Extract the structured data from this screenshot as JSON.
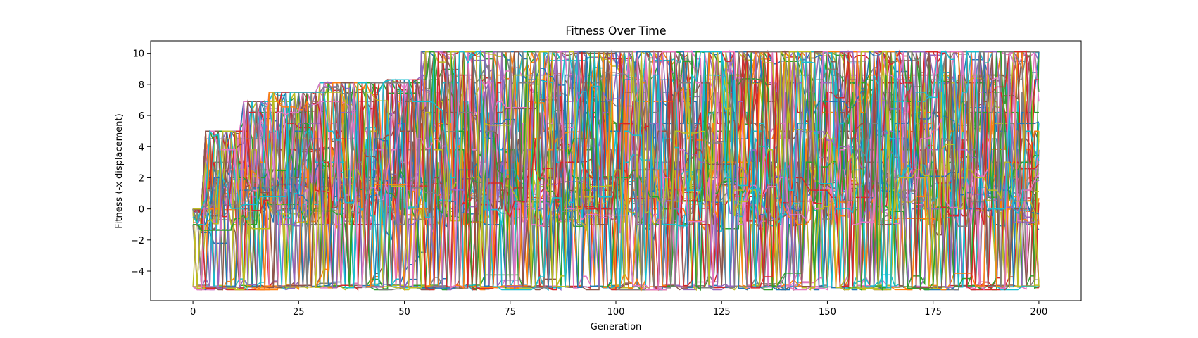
{
  "chart_data": {
    "type": "line",
    "title": "Fitness Over Time",
    "xlabel": "Generation",
    "ylabel": "Fitness (-x displacement)",
    "xlim": [
      -10,
      210
    ],
    "ylim": [
      -5.9,
      10.8
    ],
    "xticks": [
      0,
      25,
      50,
      75,
      100,
      125,
      150,
      175,
      200
    ],
    "yticks": [
      -4,
      -2,
      0,
      2,
      4,
      6,
      8,
      10
    ],
    "grid": false,
    "legend": "none",
    "palette": [
      "#1f77b4",
      "#ff7f0e",
      "#2ca02c",
      "#d62728",
      "#9467bd",
      "#8c564b",
      "#e377c2",
      "#7f7f7f",
      "#bcbd22",
      "#17becf"
    ],
    "series_count": 60,
    "generations": 201,
    "fitness_levels": [
      -5.0,
      -1.0,
      0.0,
      0.5,
      1.2,
      2.0,
      2.5,
      3.0,
      3.8,
      4.5,
      5.0,
      5.5,
      6.2,
      6.9,
      7.5,
      8.1,
      8.3,
      8.6,
      10.1
    ],
    "best_fitness_steps": [
      {
        "x": 0,
        "y": 0.0
      },
      {
        "x": 3,
        "y": 5.0
      },
      {
        "x": 12,
        "y": 6.9
      },
      {
        "x": 18,
        "y": 7.5
      },
      {
        "x": 30,
        "y": 8.1
      },
      {
        "x": 46,
        "y": 8.3
      },
      {
        "x": 54,
        "y": 10.1
      },
      {
        "x": 200,
        "y": 10.1
      }
    ]
  }
}
